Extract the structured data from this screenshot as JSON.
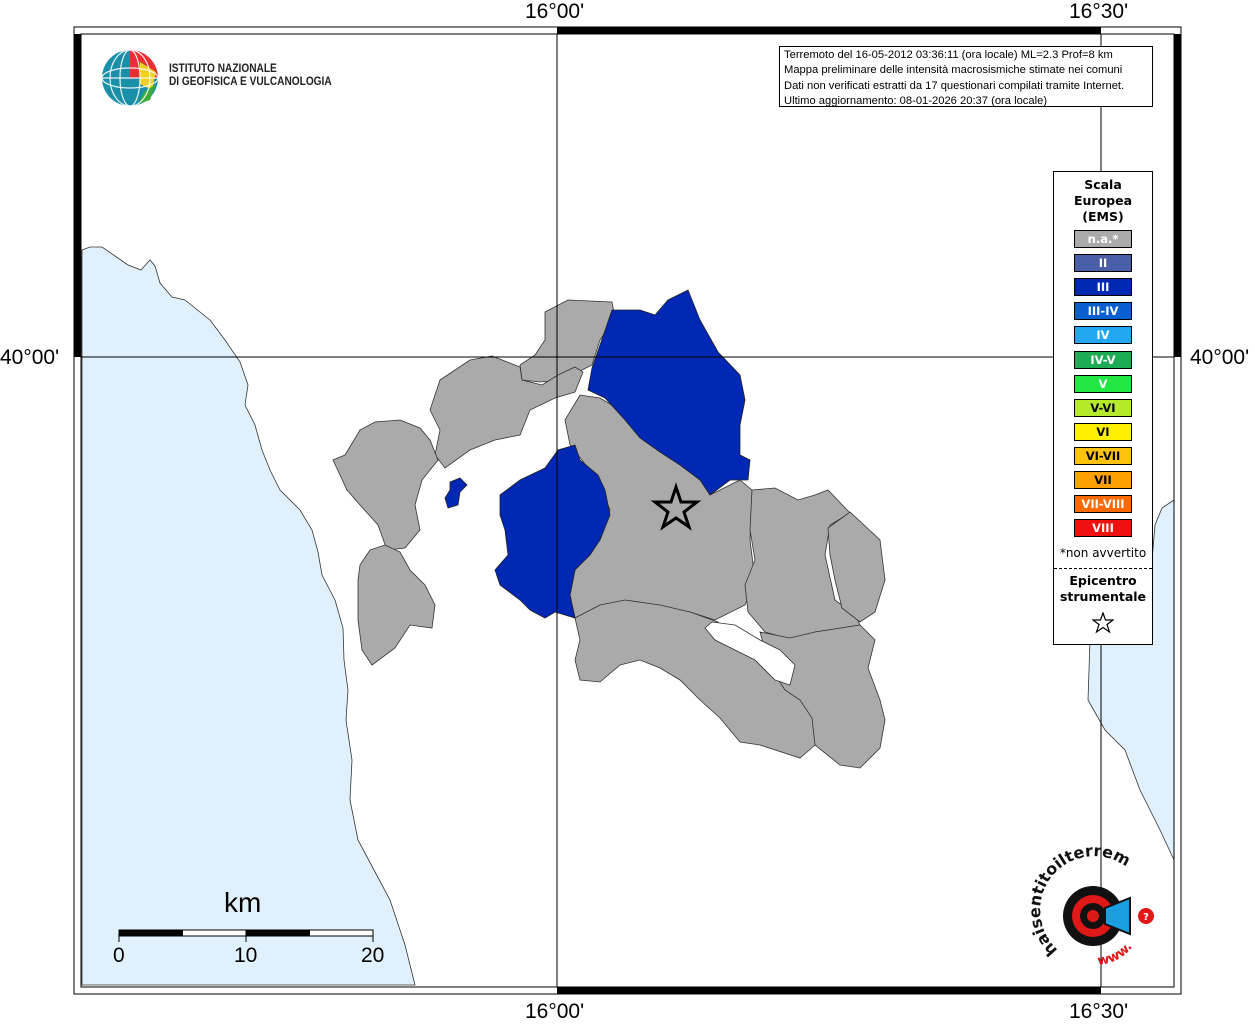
{
  "map": {
    "info_lines": [
      "Terremoto del 16-05-2012 03:36:11 (ora locale) ML=2.3 Prof=8 km",
      "Mappa preliminare delle intensità macrosismiche stimate nei comuni",
      "Dati non verificati estratti da 17 questionari compilati tramite Internet.",
      "Ultimo aggiornamento: 08-01-2026 20:37 (ora locale)"
    ],
    "lon_labels": [
      "16°00'",
      "16°30'"
    ],
    "lat_label": "40°00'",
    "colors": {
      "sea": "#e0f0fc",
      "na": "#aaaaaa",
      "III": "#0028b4"
    }
  },
  "institute_logo": {
    "line1": "ISTITUTO NAZIONALE",
    "line2": "DI GEOFISICA E VULCANOLOGIA"
  },
  "legend": {
    "title": [
      "Scala",
      "Europea",
      "(EMS)"
    ],
    "items": [
      {
        "label": "n.a.*",
        "color": "#aaaaaa"
      },
      {
        "label": "II",
        "color": "#4b5fa8"
      },
      {
        "label": "III",
        "color": "#0028b4"
      },
      {
        "label": "III-IV",
        "color": "#0a5fd0"
      },
      {
        "label": "IV",
        "color": "#22a8f0"
      },
      {
        "label": "IV-V",
        "color": "#1cad54"
      },
      {
        "label": "V",
        "color": "#22e844"
      },
      {
        "label": "V-VI",
        "color": "#b4ea2a"
      },
      {
        "label": "VI",
        "color": "#fff000"
      },
      {
        "label": "VI-VII",
        "color": "#ffc30e"
      },
      {
        "label": "VII",
        "color": "#ff9f00"
      },
      {
        "label": "VII-VIII",
        "color": "#ff6a00"
      },
      {
        "label": "VIII",
        "color": "#f01010"
      }
    ],
    "note": "*non avvertito",
    "epicenter": [
      "Epicentro",
      "strumentale"
    ]
  },
  "scale_bar": {
    "title": "km",
    "labels": [
      "0",
      "10",
      "20"
    ]
  },
  "brand_logo": {
    "text": "haisentitoilterremoto.it",
    "prefix": "www."
  }
}
